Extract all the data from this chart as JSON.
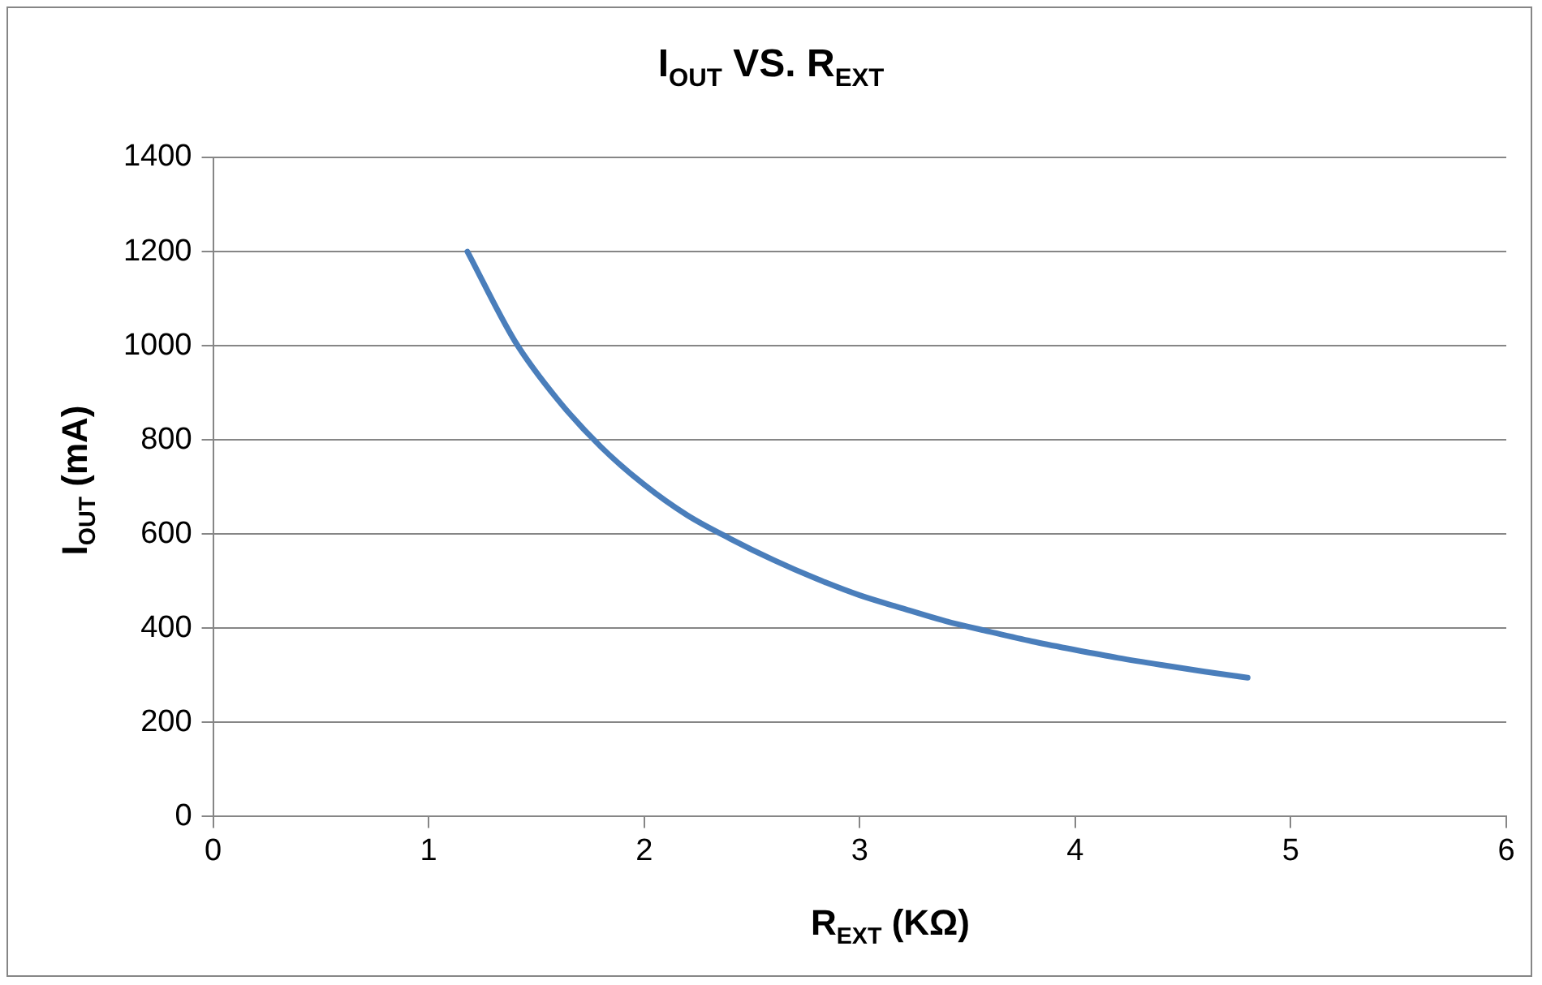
{
  "chart_data": {
    "type": "line",
    "title": "I$_{OUT}$ VS. R$_{EXT}$",
    "xlabel": "R$_{EXT}$ (KΩ)",
    "ylabel": "I$_{OUT}$ (mA)",
    "x": [
      1.18,
      1.4,
      1.6,
      1.8,
      2,
      2.2,
      2.4,
      2.6,
      2.8,
      3,
      3.2,
      3.4,
      3.6,
      3.8,
      4,
      4.2,
      4.4,
      4.6,
      4.8
    ],
    "series": [
      {
        "color": "#4a7ebb",
        "values": [
          1200,
          1010,
          885,
          785,
          705,
          640,
          590,
          545,
          505,
          470,
          442,
          415,
          393,
          372,
          354,
          337,
          322,
          308,
          295
        ]
      }
    ],
    "xlim": [
      0,
      6
    ],
    "xticks": [
      0,
      1,
      2,
      3,
      4,
      5,
      6
    ],
    "ylim": [
      0,
      1400
    ],
    "yticks": [
      0,
      200,
      400,
      600,
      800,
      1000,
      1200,
      1400
    ],
    "grid": "y",
    "legend": false,
    "marker": "none",
    "line_style": "solid"
  }
}
